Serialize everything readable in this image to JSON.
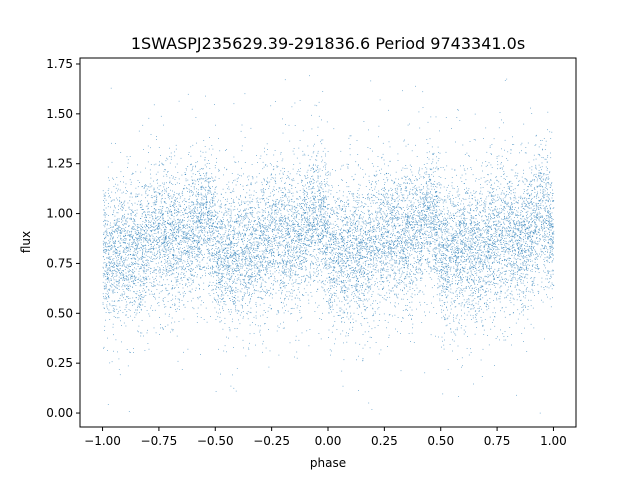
{
  "chart_data": {
    "type": "scatter",
    "title": "1SWASPJ235629.39-291836.6 Period 9743341.0s",
    "xlabel": "phase",
    "ylabel": "flux",
    "xlim": [
      -1.1,
      1.1
    ],
    "ylim": [
      -0.07,
      1.78
    ],
    "xticks": [
      -1.0,
      -0.75,
      -0.5,
      -0.25,
      0.0,
      0.25,
      0.5,
      0.75,
      1.0
    ],
    "xtick_labels": [
      "−1.00",
      "−0.75",
      "−0.50",
      "−0.25",
      "0.00",
      "0.25",
      "0.50",
      "0.75",
      "1.00"
    ],
    "yticks": [
      0.0,
      0.25,
      0.5,
      0.75,
      1.0,
      1.25,
      1.5,
      1.75
    ],
    "ytick_labels": [
      "0.00",
      "0.25",
      "0.50",
      "0.75",
      "1.00",
      "1.25",
      "1.50",
      "1.75"
    ],
    "grid": false,
    "marker_color": "#1f77b4",
    "series": [
      {
        "profile_x": [
          0.0,
          0.05,
          0.1,
          0.15,
          0.2,
          0.25,
          0.3,
          0.35,
          0.4,
          0.45,
          0.5
        ],
        "profile_y": [
          0.78,
          0.8,
          0.82,
          0.8,
          0.85,
          0.9,
          0.88,
          0.86,
          0.92,
          1.0,
          0.9
        ],
        "spread": 0.18,
        "phase_range": [
          -1.0,
          1.0
        ],
        "approx_points": 14000
      }
    ]
  }
}
